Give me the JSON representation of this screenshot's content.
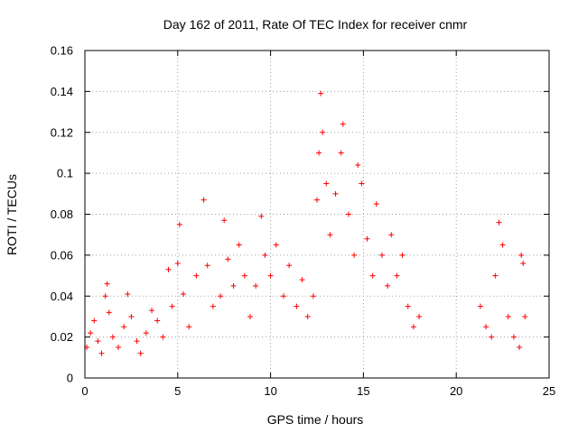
{
  "chart_data": {
    "type": "scatter",
    "title": "Day 162 of 2011, Rate Of TEC Index for receiver cnmr",
    "xlabel": "GPS time / hours",
    "ylabel": "ROTI / TECUs",
    "xlim": [
      0,
      25
    ],
    "ylim": [
      0,
      0.16
    ],
    "xticks": [
      "0",
      "5",
      "10",
      "15",
      "20",
      "25"
    ],
    "yticks": [
      "0",
      "0.02",
      "0.04",
      "0.06",
      "0.08",
      "0.1",
      "0.12",
      "0.14",
      "0.16"
    ],
    "grid": true,
    "marker": "+",
    "color": "#ff0000",
    "series": [
      {
        "points": [
          [
            0.1,
            0.015
          ],
          [
            0.3,
            0.022
          ],
          [
            0.5,
            0.028
          ],
          [
            0.7,
            0.018
          ],
          [
            0.9,
            0.012
          ],
          [
            1.1,
            0.04
          ],
          [
            1.2,
            0.046
          ],
          [
            1.3,
            0.032
          ],
          [
            1.5,
            0.02
          ],
          [
            1.8,
            0.015
          ],
          [
            2.1,
            0.025
          ],
          [
            2.3,
            0.041
          ],
          [
            2.5,
            0.03
          ],
          [
            2.8,
            0.018
          ],
          [
            3.0,
            0.012
          ],
          [
            3.3,
            0.022
          ],
          [
            3.6,
            0.033
          ],
          [
            3.9,
            0.028
          ],
          [
            4.2,
            0.02
          ],
          [
            4.5,
            0.053
          ],
          [
            4.7,
            0.035
          ],
          [
            5.0,
            0.056
          ],
          [
            5.1,
            0.075
          ],
          [
            5.3,
            0.041
          ],
          [
            5.6,
            0.025
          ],
          [
            6.0,
            0.05
          ],
          [
            6.4,
            0.087
          ],
          [
            6.6,
            0.055
          ],
          [
            6.9,
            0.035
          ],
          [
            7.3,
            0.04
          ],
          [
            7.5,
            0.077
          ],
          [
            7.7,
            0.058
          ],
          [
            8.0,
            0.045
          ],
          [
            8.3,
            0.065
          ],
          [
            8.6,
            0.05
          ],
          [
            8.9,
            0.03
          ],
          [
            9.2,
            0.045
          ],
          [
            9.5,
            0.079
          ],
          [
            9.7,
            0.06
          ],
          [
            10.0,
            0.05
          ],
          [
            10.3,
            0.065
          ],
          [
            10.7,
            0.04
          ],
          [
            11.0,
            0.055
          ],
          [
            11.4,
            0.035
          ],
          [
            11.7,
            0.048
          ],
          [
            12.0,
            0.03
          ],
          [
            12.3,
            0.04
          ],
          [
            12.5,
            0.087
          ],
          [
            12.6,
            0.11
          ],
          [
            12.7,
            0.139
          ],
          [
            12.8,
            0.12
          ],
          [
            13.0,
            0.095
          ],
          [
            13.2,
            0.07
          ],
          [
            13.5,
            0.09
          ],
          [
            13.8,
            0.11
          ],
          [
            13.9,
            0.124
          ],
          [
            14.2,
            0.08
          ],
          [
            14.5,
            0.06
          ],
          [
            14.7,
            0.104
          ],
          [
            14.9,
            0.095
          ],
          [
            15.2,
            0.068
          ],
          [
            15.5,
            0.05
          ],
          [
            15.7,
            0.085
          ],
          [
            16.0,
            0.06
          ],
          [
            16.3,
            0.045
          ],
          [
            16.5,
            0.07
          ],
          [
            16.8,
            0.05
          ],
          [
            17.1,
            0.06
          ],
          [
            17.4,
            0.035
          ],
          [
            17.7,
            0.025
          ],
          [
            18.0,
            0.03
          ],
          [
            21.3,
            0.035
          ],
          [
            21.6,
            0.025
          ],
          [
            21.9,
            0.02
          ],
          [
            22.1,
            0.05
          ],
          [
            22.3,
            0.076
          ],
          [
            22.5,
            0.065
          ],
          [
            22.8,
            0.03
          ],
          [
            23.1,
            0.02
          ],
          [
            23.4,
            0.015
          ],
          [
            23.5,
            0.06
          ],
          [
            23.6,
            0.056
          ],
          [
            23.7,
            0.03
          ]
        ]
      }
    ]
  }
}
